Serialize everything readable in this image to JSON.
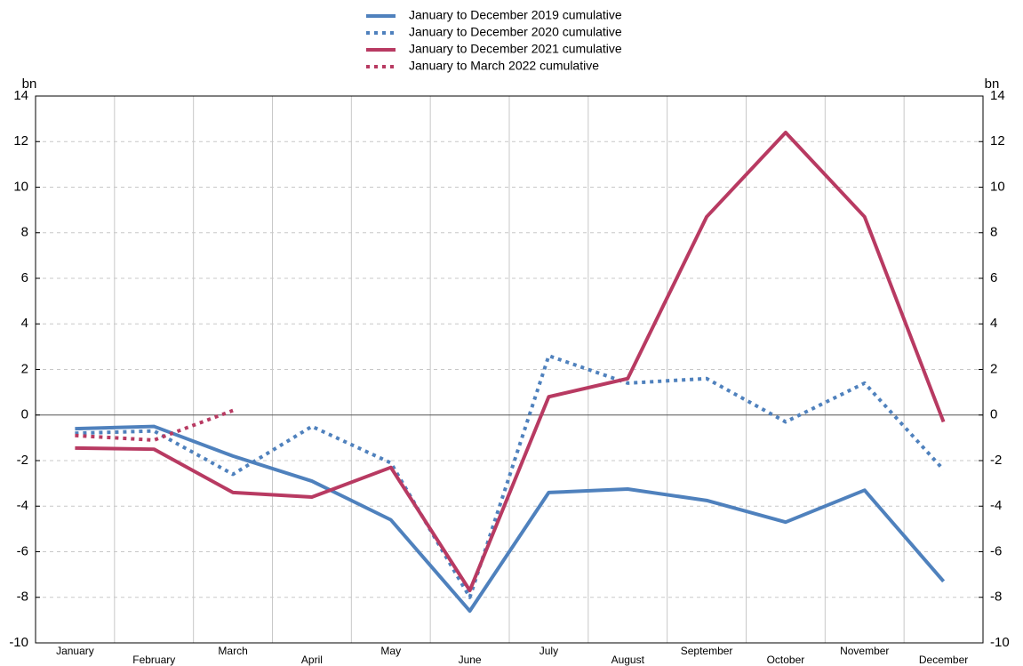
{
  "chart_data": {
    "type": "line",
    "categories": [
      "January",
      "February",
      "March",
      "April",
      "May",
      "June",
      "July",
      "August",
      "September",
      "October",
      "November",
      "December"
    ],
    "series": [
      {
        "name": "January to December 2019 cumulative",
        "color": "#4f81bd",
        "style": "solid",
        "values": [
          -0.6,
          -0.5,
          -1.8,
          -2.9,
          -4.6,
          -8.6,
          -3.4,
          -3.25,
          -3.75,
          -4.7,
          -3.3,
          -7.3
        ]
      },
      {
        "name": "January to December 2020 cumulative",
        "color": "#4f81bd",
        "style": "dotted",
        "values": [
          -0.8,
          -0.7,
          -2.6,
          -0.5,
          -2.1,
          -8.0,
          2.6,
          1.4,
          1.6,
          -0.3,
          1.4,
          -2.4
        ]
      },
      {
        "name": "January to December 2021 cumulative",
        "color": "#b83a62",
        "style": "solid",
        "values": [
          -1.45,
          -1.5,
          -3.4,
          -3.6,
          -2.3,
          -7.7,
          0.8,
          1.6,
          8.7,
          12.4,
          8.7,
          -0.3
        ]
      },
      {
        "name": "January to March 2022 cumulative",
        "color": "#b83a62",
        "style": "dotted",
        "values": [
          -0.9,
          -1.1,
          0.2,
          null,
          null,
          null,
          null,
          null,
          null,
          null,
          null,
          null
        ]
      }
    ],
    "y_label": "bn",
    "y2_label": "bn",
    "ylim": [
      -10,
      14
    ],
    "yticks": [
      -10,
      -8,
      -6,
      -4,
      -2,
      0,
      2,
      4,
      6,
      8,
      10,
      12,
      14
    ],
    "y2lim": [
      -10,
      14
    ],
    "y2ticks": [
      -10,
      -8,
      -6,
      -4,
      -2,
      0,
      2,
      4,
      6,
      8,
      10,
      12,
      14
    ],
    "grid": true
  }
}
